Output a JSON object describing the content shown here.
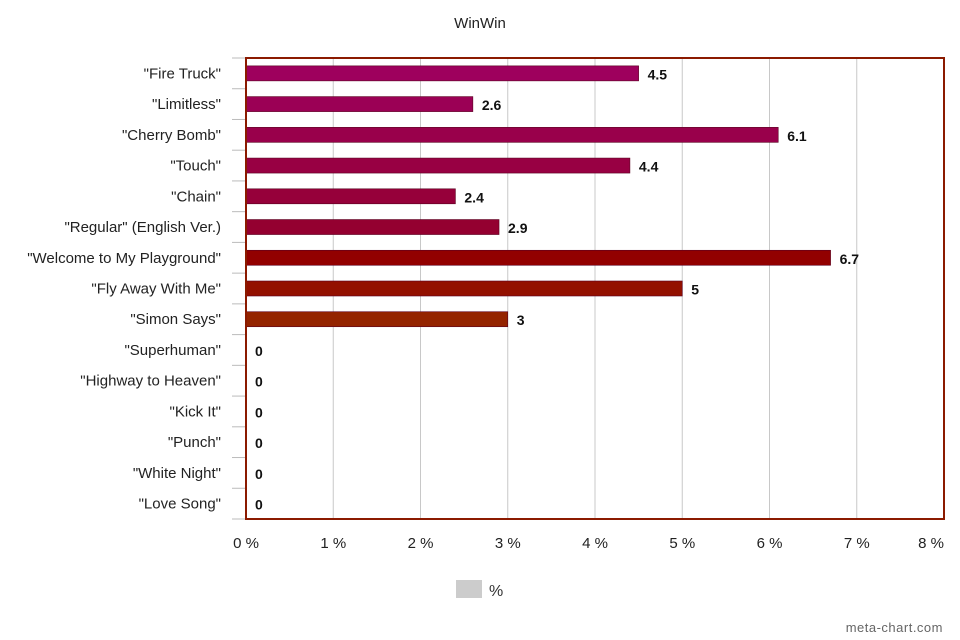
{
  "chart_data": {
    "type": "bar",
    "orientation": "horizontal",
    "title": "WinWin",
    "categories": [
      "\"Fire Truck\"",
      "\"Limitless\"",
      "\"Cherry Bomb\"",
      "\"Touch\"",
      "\"Chain\"",
      "\"Regular\" (English Ver.)",
      "\"Welcome to My Playground\"",
      "\"Fly Away With Me\"",
      "\"Simon Says\"",
      "\"Superhuman\"",
      "\"Highway to Heaven\"",
      "\"Kick It\"",
      "\"Punch\"",
      "\"White Night\"",
      "\"Love Song\""
    ],
    "series": [
      {
        "name": "%",
        "values": [
          4.5,
          2.6,
          6.1,
          4.4,
          2.4,
          2.9,
          6.7,
          5,
          3,
          0,
          0,
          0,
          0,
          0,
          0
        ],
        "value_labels": [
          "4.5",
          "2.6",
          "6.1",
          "4.4",
          "2.4",
          "2.9",
          "6.7",
          "5",
          "3",
          "0",
          "0",
          "0",
          "0",
          "0",
          "0"
        ]
      }
    ],
    "bar_colors": [
      "#9e005d",
      "#9b0055",
      "#99004b",
      "#980043",
      "#96003a",
      "#940030",
      "#920000",
      "#931000",
      "#942400"
    ],
    "xlim": [
      0,
      8
    ],
    "x_ticks": [
      "0 %",
      "1 %",
      "2 %",
      "3 %",
      "4 %",
      "5 %",
      "6 %",
      "7 %",
      "8 %"
    ],
    "xlabel": "",
    "ylabel": "",
    "grid": true,
    "legend": {
      "position": "bottom",
      "label": "%",
      "swatch_color": "#cccccc"
    },
    "frame_color": "#8b1a00",
    "credit": "meta-chart.com"
  }
}
